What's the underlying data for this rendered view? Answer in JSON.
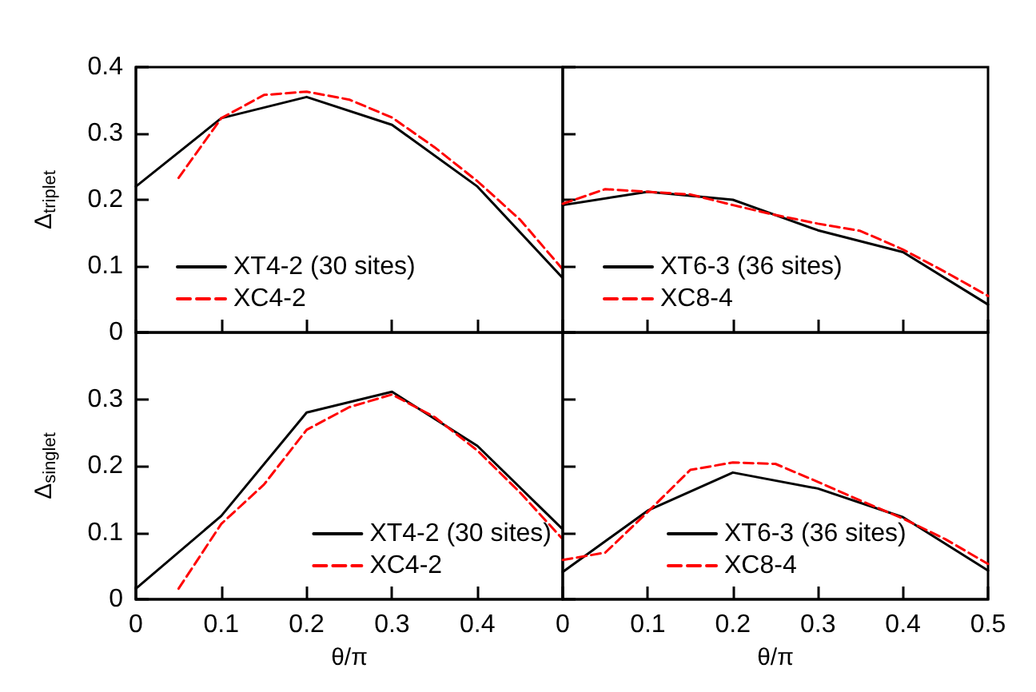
{
  "chart_data": [
    {
      "type": "line",
      "ylabel": "Δ$_{triplet}$",
      "xlim": [
        0,
        0.5
      ],
      "xticks": [
        0,
        0.1,
        0.2,
        0.3,
        0.4,
        0.5
      ],
      "ylim": [
        0,
        0.4
      ],
      "yticks": [
        0,
        0.1,
        0.2,
        0.3,
        0.4
      ],
      "tick_labels": "y",
      "legend": "bottom left",
      "grid": false,
      "marker": "none",
      "series": [
        {
          "name": "XT4-2 (30 sites)",
          "color": "#000000",
          "line_style": "solid",
          "x": [
            0,
            0.1,
            0.2,
            0.3,
            0.4,
            0.5
          ],
          "values": [
            0.22,
            0.323,
            0.355,
            0.313,
            0.22,
            0.082
          ]
        },
        {
          "name": "XC4-2",
          "color": "#ff0000",
          "line_style": "dashed",
          "x": [
            0.05,
            0.1,
            0.15,
            0.2,
            0.25,
            0.3,
            0.35,
            0.4,
            0.45,
            0.5
          ],
          "values": [
            0.233,
            0.323,
            0.358,
            0.363,
            0.351,
            0.324,
            0.279,
            0.228,
            0.17,
            0.095
          ]
        }
      ]
    },
    {
      "type": "line",
      "xlim": [
        0,
        0.5
      ],
      "xticks": [
        0,
        0.1,
        0.2,
        0.3,
        0.4,
        0.5
      ],
      "ylim": [
        0,
        0.4
      ],
      "yticks": [
        0,
        0.1,
        0.2,
        0.3,
        0.4
      ],
      "tick_labels": false,
      "legend": "bottom left",
      "grid": false,
      "marker": "none",
      "series": [
        {
          "name": "XT6-3 (36 sites)",
          "color": "#000000",
          "line_style": "solid",
          "x": [
            0,
            0.1,
            0.2,
            0.3,
            0.4,
            0.5
          ],
          "values": [
            0.192,
            0.212,
            0.2,
            0.154,
            0.121,
            0.042
          ]
        },
        {
          "name": "XC8-4",
          "color": "#ff0000",
          "line_style": "dashed",
          "x": [
            0,
            0.05,
            0.1,
            0.15,
            0.2,
            0.25,
            0.3,
            0.35,
            0.4,
            0.45,
            0.5
          ],
          "values": [
            0.194,
            0.216,
            0.212,
            0.208,
            0.192,
            0.177,
            0.164,
            0.153,
            0.125,
            0.091,
            0.055
          ]
        }
      ]
    },
    {
      "type": "line",
      "xlabel": "θ/π",
      "ylabel": "Δ$_{singlet}$",
      "xlim": [
        0,
        0.5
      ],
      "xticks": [
        0,
        0.1,
        0.2,
        0.3,
        0.4,
        {
          "value": 0.5,
          "label": null
        }
      ],
      "ylim": [
        0,
        0.4
      ],
      "yticks": [
        0,
        0.1,
        0.2,
        0.3,
        {
          "value": 0.4,
          "label": null
        }
      ],
      "legend": "bottom right",
      "grid": false,
      "marker": "none",
      "series": [
        {
          "name": "XT4-2 (30 sites)",
          "color": "#000000",
          "line_style": "solid",
          "x": [
            0,
            0.1,
            0.2,
            0.3,
            0.4,
            0.5
          ],
          "values": [
            0.016,
            0.125,
            0.28,
            0.311,
            0.23,
            0.105
          ]
        },
        {
          "name": "XC4-2",
          "color": "#ff0000",
          "line_style": "dashed",
          "x": [
            0.05,
            0.1,
            0.15,
            0.2,
            0.25,
            0.3,
            0.35,
            0.4,
            0.45,
            0.5
          ],
          "values": [
            0.016,
            0.113,
            0.172,
            0.254,
            0.288,
            0.307,
            0.273,
            0.223,
            0.16,
            0.09
          ]
        }
      ]
    },
    {
      "type": "line",
      "xlabel": "θ/π",
      "xlim": [
        0,
        0.5
      ],
      "xticks": [
        0,
        0.1,
        0.2,
        0.3,
        0.4,
        0.5
      ],
      "ylim": [
        0,
        0.4
      ],
      "yticks": [
        0,
        0.1,
        0.2,
        0.3,
        0.4
      ],
      "tick_labels": "x",
      "legend": "bottom",
      "grid": false,
      "marker": "none",
      "series": [
        {
          "name": "XT6-3 (36 sites)",
          "color": "#000000",
          "line_style": "solid",
          "x": [
            0,
            0.1,
            0.2,
            0.3,
            0.4,
            0.5
          ],
          "values": [
            0.041,
            0.133,
            0.19,
            0.166,
            0.123,
            0.043
          ]
        },
        {
          "name": "XC8-4",
          "color": "#ff0000",
          "line_style": "dashed",
          "x": [
            0,
            0.05,
            0.1,
            0.15,
            0.2,
            0.25,
            0.3,
            0.35,
            0.4,
            0.45,
            0.5
          ],
          "values": [
            0.059,
            0.07,
            0.131,
            0.194,
            0.205,
            0.203,
            0.176,
            0.148,
            0.121,
            0.09,
            0.053
          ]
        }
      ]
    }
  ]
}
